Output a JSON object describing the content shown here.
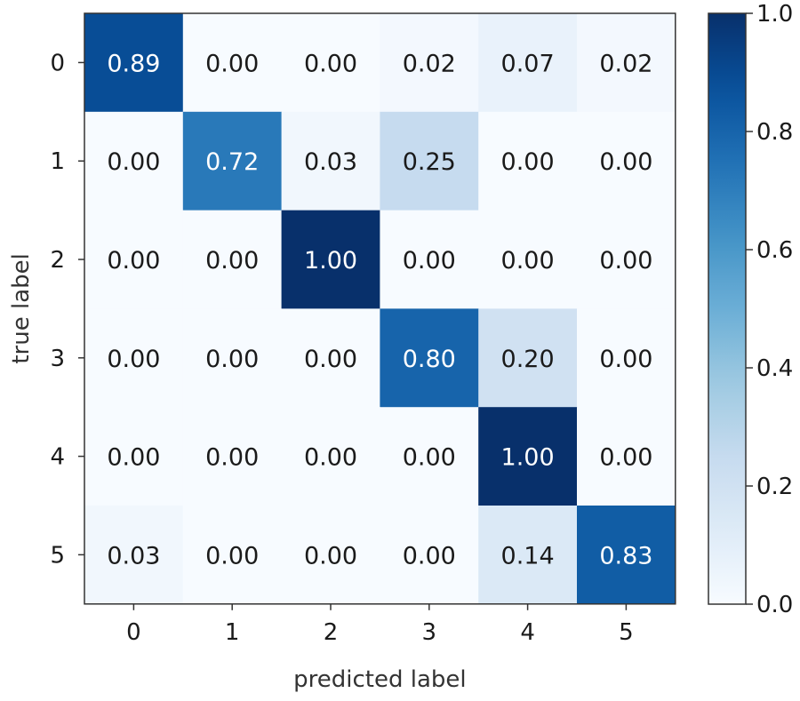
{
  "chart_data": {
    "type": "heatmap",
    "title": "",
    "xlabel": "predicted label",
    "ylabel": "true label",
    "x_categories": [
      "0",
      "1",
      "2",
      "3",
      "4",
      "5"
    ],
    "y_categories": [
      "0",
      "1",
      "2",
      "3",
      "4",
      "5"
    ],
    "matrix": [
      [
        0.89,
        0.0,
        0.0,
        0.02,
        0.07,
        0.02
      ],
      [
        0.0,
        0.72,
        0.03,
        0.25,
        0.0,
        0.0
      ],
      [
        0.0,
        0.0,
        1.0,
        0.0,
        0.0,
        0.0
      ],
      [
        0.0,
        0.0,
        0.0,
        0.8,
        0.2,
        0.0
      ],
      [
        0.0,
        0.0,
        0.0,
        0.0,
        1.0,
        0.0
      ],
      [
        0.03,
        0.0,
        0.0,
        0.0,
        0.14,
        0.83
      ]
    ],
    "value_format": "0.00",
    "colormap": "Blues",
    "colorbar": {
      "range": [
        0.0,
        1.0
      ],
      "ticks": [
        "0.0",
        "0.2",
        "0.4",
        "0.6",
        "0.8",
        "1.0"
      ]
    },
    "colors": {
      "low": "#f7fbff",
      "high": "#08306b",
      "text_dark": "#1a1a1a",
      "text_light": "#ffffff"
    }
  }
}
